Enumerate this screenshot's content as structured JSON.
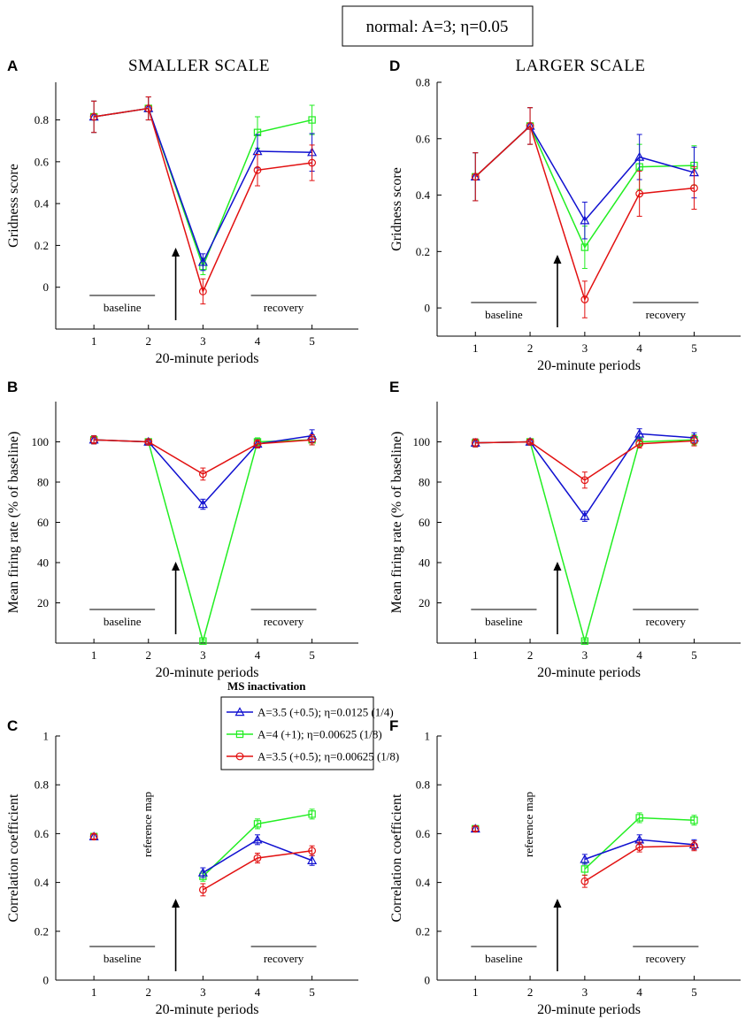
{
  "header": {
    "label": "normal: A=3; η=0.05"
  },
  "titles": {
    "left": "SMALLER SCALE",
    "right": "LARGER SCALE"
  },
  "colors": {
    "blue": "#1010d0",
    "green": "#22ee22",
    "red": "#e21010",
    "axis": "#000000"
  },
  "legend": {
    "title": "MS inactivation",
    "entries": [
      {
        "label": "A=3.5 (+0.5); η=0.0125 (1/4)",
        "color": "#1010d0",
        "marker": "triangle"
      },
      {
        "label": "A=4 (+1); η=0.00625 (1/8)",
        "color": "#22ee22",
        "marker": "square"
      },
      {
        "label": "A=3.5 (+0.5); η=0.00625 (1/8)",
        "color": "#e21010",
        "marker": "circle"
      }
    ]
  },
  "chart_data": [
    {
      "panel": "A",
      "type": "line",
      "xlabel": "20-minute periods",
      "ylabel": "Gridness score",
      "x": [
        1,
        2,
        3,
        4,
        5
      ],
      "xlim": [
        0.3,
        5.85
      ],
      "ylim": [
        -0.2,
        0.98
      ],
      "yticks": [
        0,
        0.2,
        0.4,
        0.6,
        0.8
      ],
      "ytick_labels": [
        "0",
        "0.2",
        "0.4",
        "0.6",
        "0.8"
      ],
      "baseline_label": "baseline",
      "recovery_label": "recovery",
      "series": [
        {
          "name": "A=3.5 (+0.5); η=0.0125 (1/4)",
          "values": [
            0.815,
            0.855,
            0.12,
            0.65,
            0.645
          ],
          "errors": [
            0.075,
            0.055,
            0.04,
            0.08,
            0.09
          ]
        },
        {
          "name": "A=4 (+1); η=0.00625 (1/8)",
          "values": [
            0.815,
            0.855,
            0.1,
            0.74,
            0.8
          ],
          "errors": [
            0.075,
            0.055,
            0.04,
            0.075,
            0.07
          ]
        },
        {
          "name": "A=3.5 (+0.5); η=0.00625 (1/8)",
          "values": [
            0.815,
            0.855,
            -0.02,
            0.56,
            0.595
          ],
          "errors": [
            0.075,
            0.055,
            0.06,
            0.075,
            0.085
          ]
        }
      ]
    },
    {
      "panel": "D",
      "type": "line",
      "xlabel": "20-minute periods",
      "ylabel": "Gridness score",
      "x": [
        1,
        2,
        3,
        4,
        5
      ],
      "xlim": [
        0.3,
        5.85
      ],
      "ylim": [
        -0.1,
        0.8
      ],
      "yticks": [
        0,
        0.2,
        0.4,
        0.6,
        0.8
      ],
      "ytick_labels": [
        "0",
        "0.2",
        "0.4",
        "0.6",
        "0.8"
      ],
      "baseline_label": "baseline",
      "recovery_label": "recovery",
      "series": [
        {
          "name": "A=3.5 (+0.5); η=0.0125 (1/4)",
          "values": [
            0.465,
            0.645,
            0.31,
            0.535,
            0.48
          ],
          "errors": [
            0.085,
            0.065,
            0.065,
            0.08,
            0.09
          ]
        },
        {
          "name": "A=4 (+1); η=0.00625 (1/8)",
          "values": [
            0.465,
            0.645,
            0.215,
            0.5,
            0.505
          ],
          "errors": [
            0.085,
            0.065,
            0.075,
            0.08,
            0.07
          ]
        },
        {
          "name": "A=3.5 (+0.5); η=0.00625 (1/8)",
          "values": [
            0.465,
            0.645,
            0.03,
            0.405,
            0.425
          ],
          "errors": [
            0.085,
            0.065,
            0.065,
            0.08,
            0.075
          ]
        }
      ]
    },
    {
      "panel": "B",
      "type": "line",
      "xlabel": "20-minute periods",
      "ylabel": "Mean firing rate (% of baseline)",
      "x": [
        1,
        2,
        3,
        4,
        5
      ],
      "xlim": [
        0.3,
        5.85
      ],
      "ylim": [
        0,
        120
      ],
      "yticks": [
        20,
        40,
        60,
        80,
        100
      ],
      "ytick_labels": [
        "20",
        "40",
        "60",
        "80",
        "100"
      ],
      "baseline_label": "baseline",
      "recovery_label": "recovery",
      "series": [
        {
          "name": "A=3.5 (+0.5); η=0.0125 (1/4)",
          "values": [
            101,
            100,
            69,
            99,
            103
          ],
          "errors": [
            2,
            1,
            2.5,
            2,
            3
          ]
        },
        {
          "name": "A=4 (+1); η=0.00625 (1/8)",
          "values": [
            101,
            100,
            1,
            100,
            101
          ],
          "errors": [
            2,
            1,
            0.5,
            2,
            2.5
          ]
        },
        {
          "name": "A=3.5 (+0.5); η=0.00625 (1/8)",
          "values": [
            101,
            100,
            84,
            99,
            101
          ],
          "errors": [
            2,
            1,
            3,
            2,
            2.5
          ]
        }
      ]
    },
    {
      "panel": "E",
      "type": "line",
      "xlabel": "20-minute periods",
      "ylabel": "Mean firing rate (% of baseline)",
      "x": [
        1,
        2,
        3,
        4,
        5
      ],
      "xlim": [
        0.3,
        5.85
      ],
      "ylim": [
        0,
        120
      ],
      "yticks": [
        20,
        40,
        60,
        80,
        100
      ],
      "ytick_labels": [
        "20",
        "40",
        "60",
        "80",
        "100"
      ],
      "baseline_label": "baseline",
      "recovery_label": "recovery",
      "series": [
        {
          "name": "A=3.5 (+0.5); η=0.0125 (1/4)",
          "values": [
            99.5,
            100,
            63,
            104,
            102
          ],
          "errors": [
            2,
            1,
            2.5,
            2.5,
            2.5
          ]
        },
        {
          "name": "A=4 (+1); η=0.00625 (1/8)",
          "values": [
            99.5,
            100,
            1,
            100,
            101
          ],
          "errors": [
            2,
            1,
            0.5,
            2,
            2.5
          ]
        },
        {
          "name": "A=3.5 (+0.5); η=0.00625 (1/8)",
          "values": [
            99.5,
            100,
            81,
            99,
            100.5
          ],
          "errors": [
            2,
            1,
            4,
            2,
            2.5
          ]
        }
      ]
    },
    {
      "panel": "C",
      "type": "line",
      "xlabel": "20-minute periods",
      "ylabel": "Correlation coefficient",
      "x": [
        1,
        2,
        3,
        4,
        5
      ],
      "xlim": [
        0.3,
        5.85
      ],
      "ylim": [
        0,
        1
      ],
      "yticks": [
        0,
        0.2,
        0.4,
        0.6,
        0.8,
        1
      ],
      "ytick_labels": [
        "0",
        "0.2",
        "0.4",
        "0.6",
        "0.8",
        "1"
      ],
      "baseline_label": "baseline",
      "recovery_label": "recovery",
      "reference_label": "reference map",
      "series": [
        {
          "name": "A=3.5 (+0.5); η=0.0125 (1/4)",
          "values": [
            0.588,
            null,
            0.44,
            0.575,
            0.49
          ],
          "errors": [
            0.01,
            0,
            0.02,
            0.02,
            0.02
          ]
        },
        {
          "name": "A=4 (+1); η=0.00625 (1/8)",
          "values": [
            0.588,
            null,
            0.425,
            0.64,
            0.68
          ],
          "errors": [
            0.01,
            0,
            0.02,
            0.02,
            0.02
          ]
        },
        {
          "name": "A=3.5 (+0.5); η=0.00625 (1/8)",
          "values": [
            0.588,
            null,
            0.37,
            0.5,
            0.53
          ],
          "errors": [
            0.01,
            0,
            0.025,
            0.02,
            0.02
          ]
        }
      ]
    },
    {
      "panel": "F",
      "type": "line",
      "xlabel": "20-minute periods",
      "ylabel": "Correlation coefficient",
      "x": [
        1,
        2,
        3,
        4,
        5
      ],
      "xlim": [
        0.3,
        5.85
      ],
      "ylim": [
        0,
        1
      ],
      "yticks": [
        0,
        0.2,
        0.4,
        0.6,
        0.8,
        1
      ],
      "ytick_labels": [
        "0",
        "0.2",
        "0.4",
        "0.6",
        "0.8",
        "1"
      ],
      "baseline_label": "baseline",
      "recovery_label": "recovery",
      "reference_label": "reference map",
      "series": [
        {
          "name": "A=3.5 (+0.5); η=0.0125 (1/4)",
          "values": [
            0.62,
            null,
            0.495,
            0.575,
            0.555
          ],
          "errors": [
            0.01,
            0,
            0.02,
            0.02,
            0.02
          ]
        },
        {
          "name": "A=4 (+1); η=0.00625 (1/8)",
          "values": [
            0.62,
            null,
            0.455,
            0.665,
            0.655
          ],
          "errors": [
            0.01,
            0,
            0.025,
            0.02,
            0.02
          ]
        },
        {
          "name": "A=3.5 (+0.5); η=0.00625 (1/8)",
          "values": [
            0.62,
            null,
            0.405,
            0.545,
            0.55
          ],
          "errors": [
            0.01,
            0,
            0.025,
            0.02,
            0.02
          ]
        }
      ]
    }
  ]
}
